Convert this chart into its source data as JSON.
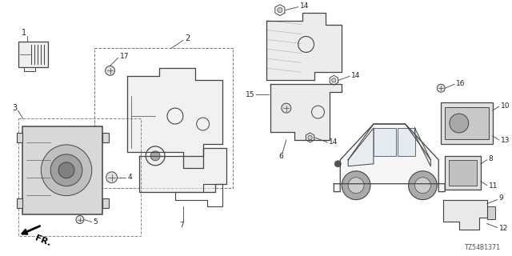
{
  "diagram_id": "TZ54B1371",
  "background": "#ffffff",
  "lc": "#444444",
  "tc": "#222222",
  "figsize": [
    6.4,
    3.2
  ],
  "dpi": 100
}
